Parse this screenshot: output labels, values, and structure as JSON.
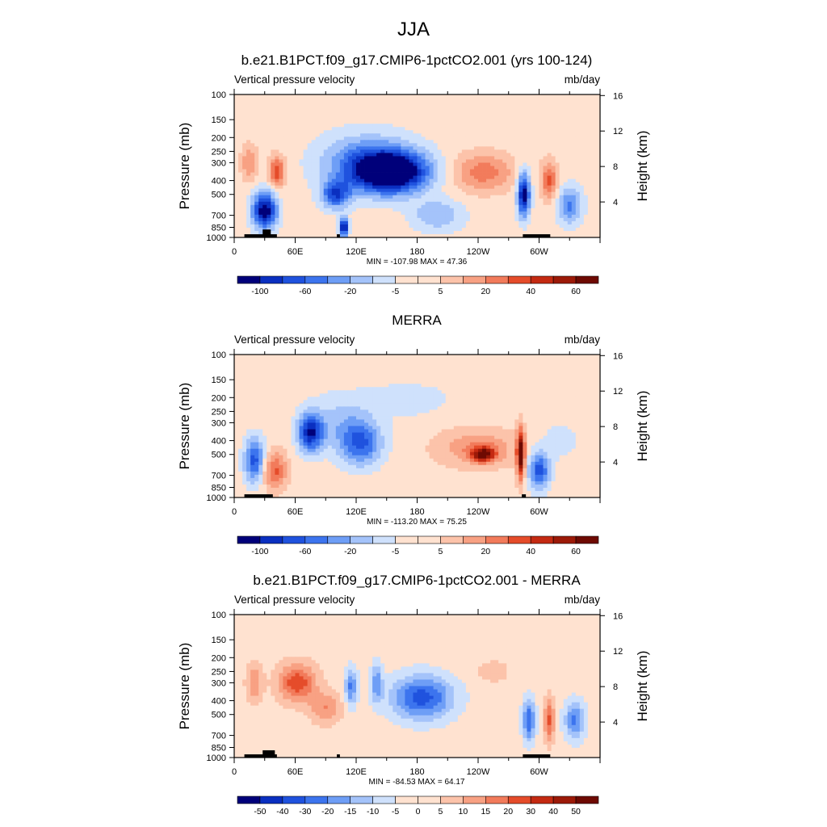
{
  "figure": {
    "title": "JJA",
    "colormap_blue_to_red": [
      "#00007a",
      "#0a2fc0",
      "#1f52de",
      "#3c74ee",
      "#6e9ef6",
      "#a4c3fa",
      "#cfe1fc",
      "#ffe2d0",
      "#fcc3aa",
      "#f8a183",
      "#f27b5b",
      "#e54c2a",
      "#c42a12",
      "#9c1a08",
      "#6e0a02"
    ]
  },
  "chart_data": [
    {
      "type": "heatmap",
      "title": "b.e21.B1PCT.f09_g17.CMIP6-1pctCO2.001 (yrs 100-124)",
      "left_label": "Vertical pressure velocity",
      "right_label": "mb/day",
      "ylabel": "Pressure (mb)",
      "ylabel_right": "Height (km)",
      "x_ticks": [
        "0",
        "60E",
        "120E",
        "180",
        "120W",
        "60W"
      ],
      "x_tick_lon": [
        0,
        60,
        120,
        180,
        240,
        300
      ],
      "xlim": [
        0,
        360
      ],
      "y_ticks": [
        "100",
        "150",
        "200",
        "250",
        "300",
        "400",
        "500",
        "700",
        "850",
        "1000"
      ],
      "y_tick_values": [
        100,
        150,
        200,
        250,
        300,
        400,
        500,
        700,
        850,
        1000
      ],
      "ylim": [
        1000,
        100
      ],
      "right_ticks": [
        "4",
        "8",
        "12",
        "16"
      ],
      "right_tick_km": [
        4,
        8,
        12,
        16
      ],
      "stats": "MIN = -107.98  MAX =  47.36",
      "colorbar_labels": [
        "-100",
        "-60",
        "-20",
        "-5",
        "5",
        "20",
        "40",
        "60"
      ],
      "colorbar_levels": 16,
      "blobs": [
        {
          "lon": 155,
          "p": 350,
          "w": 35,
          "h": 0.32,
          "v": -70
        },
        {
          "lon": 130,
          "p": 300,
          "w": 45,
          "h": 0.45,
          "v": -30
        },
        {
          "lon": 100,
          "p": 500,
          "w": 14,
          "h": 0.22,
          "v": -40
        },
        {
          "lon": 108,
          "p": 850,
          "w": 4,
          "h": 0.15,
          "v": -60
        },
        {
          "lon": 30,
          "p": 650,
          "w": 12,
          "h": 0.3,
          "v": -60
        },
        {
          "lon": 42,
          "p": 350,
          "w": 8,
          "h": 0.25,
          "v": 35
        },
        {
          "lon": 15,
          "p": 300,
          "w": 8,
          "h": 0.28,
          "v": 20
        },
        {
          "lon": 245,
          "p": 350,
          "w": 30,
          "h": 0.3,
          "v": 25
        },
        {
          "lon": 285,
          "p": 500,
          "w": 6,
          "h": 0.35,
          "v": -60
        },
        {
          "lon": 310,
          "p": 400,
          "w": 8,
          "h": 0.3,
          "v": 30
        },
        {
          "lon": 330,
          "p": 600,
          "w": 12,
          "h": 0.3,
          "v": -30
        },
        {
          "lon": 200,
          "p": 700,
          "w": 25,
          "h": 0.25,
          "v": -20
        }
      ],
      "stripes": [
        {
          "lon": 0,
          "p": 120,
          "w": 180,
          "h": 0.05,
          "v": 4
        }
      ],
      "topography": [
        {
          "lon0": 10,
          "lon1": 42,
          "p": 950
        },
        {
          "lon0": 28,
          "lon1": 36,
          "p": 880
        },
        {
          "lon0": 101,
          "lon1": 104,
          "p": 950
        },
        {
          "lon0": 284,
          "lon1": 311,
          "p": 950
        }
      ]
    },
    {
      "type": "heatmap",
      "title": "MERRA",
      "left_label": "Vertical pressure velocity",
      "right_label": "mb/day",
      "ylabel": "Pressure (mb)",
      "ylabel_right": "Height (km)",
      "x_ticks": [
        "0",
        "60E",
        "120E",
        "180",
        "120W",
        "60W"
      ],
      "x_tick_lon": [
        0,
        60,
        120,
        180,
        240,
        300
      ],
      "xlim": [
        0,
        360
      ],
      "y_ticks": [
        "100",
        "150",
        "200",
        "250",
        "300",
        "400",
        "500",
        "700",
        "850",
        "1000"
      ],
      "y_tick_values": [
        100,
        150,
        200,
        250,
        300,
        400,
        500,
        700,
        850,
        1000
      ],
      "ylim": [
        1000,
        100
      ],
      "right_ticks": [
        "4",
        "8",
        "12",
        "16"
      ],
      "right_tick_km": [
        4,
        8,
        12,
        16
      ],
      "stats": "MIN = -113.20  MAX =  75.25",
      "colorbar_labels": [
        "-100",
        "-60",
        "-20",
        "-5",
        "5",
        "20",
        "40",
        "60"
      ],
      "colorbar_levels": 16,
      "blobs": [
        {
          "lon": 75,
          "p": 350,
          "w": 12,
          "h": 0.3,
          "v": -50
        },
        {
          "lon": 125,
          "p": 420,
          "w": 20,
          "h": 0.35,
          "v": -35
        },
        {
          "lon": 105,
          "p": 300,
          "w": 30,
          "h": 0.45,
          "v": -15
        },
        {
          "lon": 40,
          "p": 650,
          "w": 12,
          "h": 0.3,
          "v": 30
        },
        {
          "lon": 20,
          "p": 550,
          "w": 10,
          "h": 0.35,
          "v": -40
        },
        {
          "lon": 240,
          "p": 450,
          "w": 40,
          "h": 0.3,
          "v": 20
        },
        {
          "lon": 245,
          "p": 500,
          "w": 12,
          "h": 0.12,
          "v": 45
        },
        {
          "lon": 282,
          "p": 500,
          "w": 4,
          "h": 0.4,
          "v": 60
        },
        {
          "lon": 300,
          "p": 650,
          "w": 10,
          "h": 0.3,
          "v": -40
        },
        {
          "lon": 320,
          "p": 400,
          "w": 25,
          "h": 0.4,
          "v": -6
        },
        {
          "lon": 170,
          "p": 200,
          "w": 40,
          "h": 0.3,
          "v": -10
        }
      ],
      "stripes": [
        {
          "lon": 210,
          "p": 150,
          "w": 150,
          "h": 0.1,
          "v": 4
        }
      ],
      "topography": [
        {
          "lon0": 10,
          "lon1": 38,
          "p": 950
        },
        {
          "lon0": 283,
          "lon1": 287,
          "p": 950
        }
      ]
    },
    {
      "type": "heatmap",
      "title": "b.e21.B1PCT.f09_g17.CMIP6-1pctCO2.001 - MERRA",
      "left_label": "Vertical pressure velocity",
      "right_label": "mb/day",
      "ylabel": "Pressure (mb)",
      "ylabel_right": "Height (km)",
      "x_ticks": [
        "0",
        "60E",
        "120E",
        "180",
        "120W",
        "60W"
      ],
      "x_tick_lon": [
        0,
        60,
        120,
        180,
        240,
        300
      ],
      "xlim": [
        0,
        360
      ],
      "y_ticks": [
        "100",
        "150",
        "200",
        "250",
        "300",
        "400",
        "500",
        "700",
        "850",
        "1000"
      ],
      "y_tick_values": [
        100,
        150,
        200,
        250,
        300,
        400,
        500,
        700,
        850,
        1000
      ],
      "ylim": [
        1000,
        100
      ],
      "right_ticks": [
        "4",
        "8",
        "12",
        "16"
      ],
      "right_tick_km": [
        4,
        8,
        12,
        16
      ],
      "stats": "MIN = -84.53  MAX =  64.17",
      "colorbar_labels": [
        "-50",
        "-40",
        "-30",
        "-20",
        "-15",
        "-10",
        "-5",
        "0",
        "5",
        "10",
        "15",
        "20",
        "30",
        "40",
        "50"
      ],
      "colorbar_levels": 16,
      "blobs": [
        {
          "lon": 62,
          "p": 300,
          "w": 18,
          "h": 0.3,
          "v": 35
        },
        {
          "lon": 90,
          "p": 450,
          "w": 15,
          "h": 0.25,
          "v": 20
        },
        {
          "lon": 20,
          "p": 300,
          "w": 8,
          "h": 0.3,
          "v": 20
        },
        {
          "lon": 115,
          "p": 320,
          "w": 6,
          "h": 0.3,
          "v": -30
        },
        {
          "lon": 140,
          "p": 300,
          "w": 6,
          "h": 0.3,
          "v": -25
        },
        {
          "lon": 185,
          "p": 380,
          "w": 30,
          "h": 0.35,
          "v": -40
        },
        {
          "lon": 290,
          "p": 550,
          "w": 6,
          "h": 0.35,
          "v": -35
        },
        {
          "lon": 310,
          "p": 550,
          "w": 5,
          "h": 0.35,
          "v": 30
        },
        {
          "lon": 335,
          "p": 550,
          "w": 10,
          "h": 0.3,
          "v": -30
        },
        {
          "lon": 255,
          "p": 250,
          "w": 18,
          "h": 0.2,
          "v": 8
        }
      ],
      "stripes": [],
      "topography": [
        {
          "lon0": 10,
          "lon1": 42,
          "p": 950
        },
        {
          "lon0": 28,
          "lon1": 40,
          "p": 890
        },
        {
          "lon0": 101,
          "lon1": 104,
          "p": 950
        },
        {
          "lon0": 284,
          "lon1": 311,
          "p": 950
        }
      ]
    }
  ]
}
